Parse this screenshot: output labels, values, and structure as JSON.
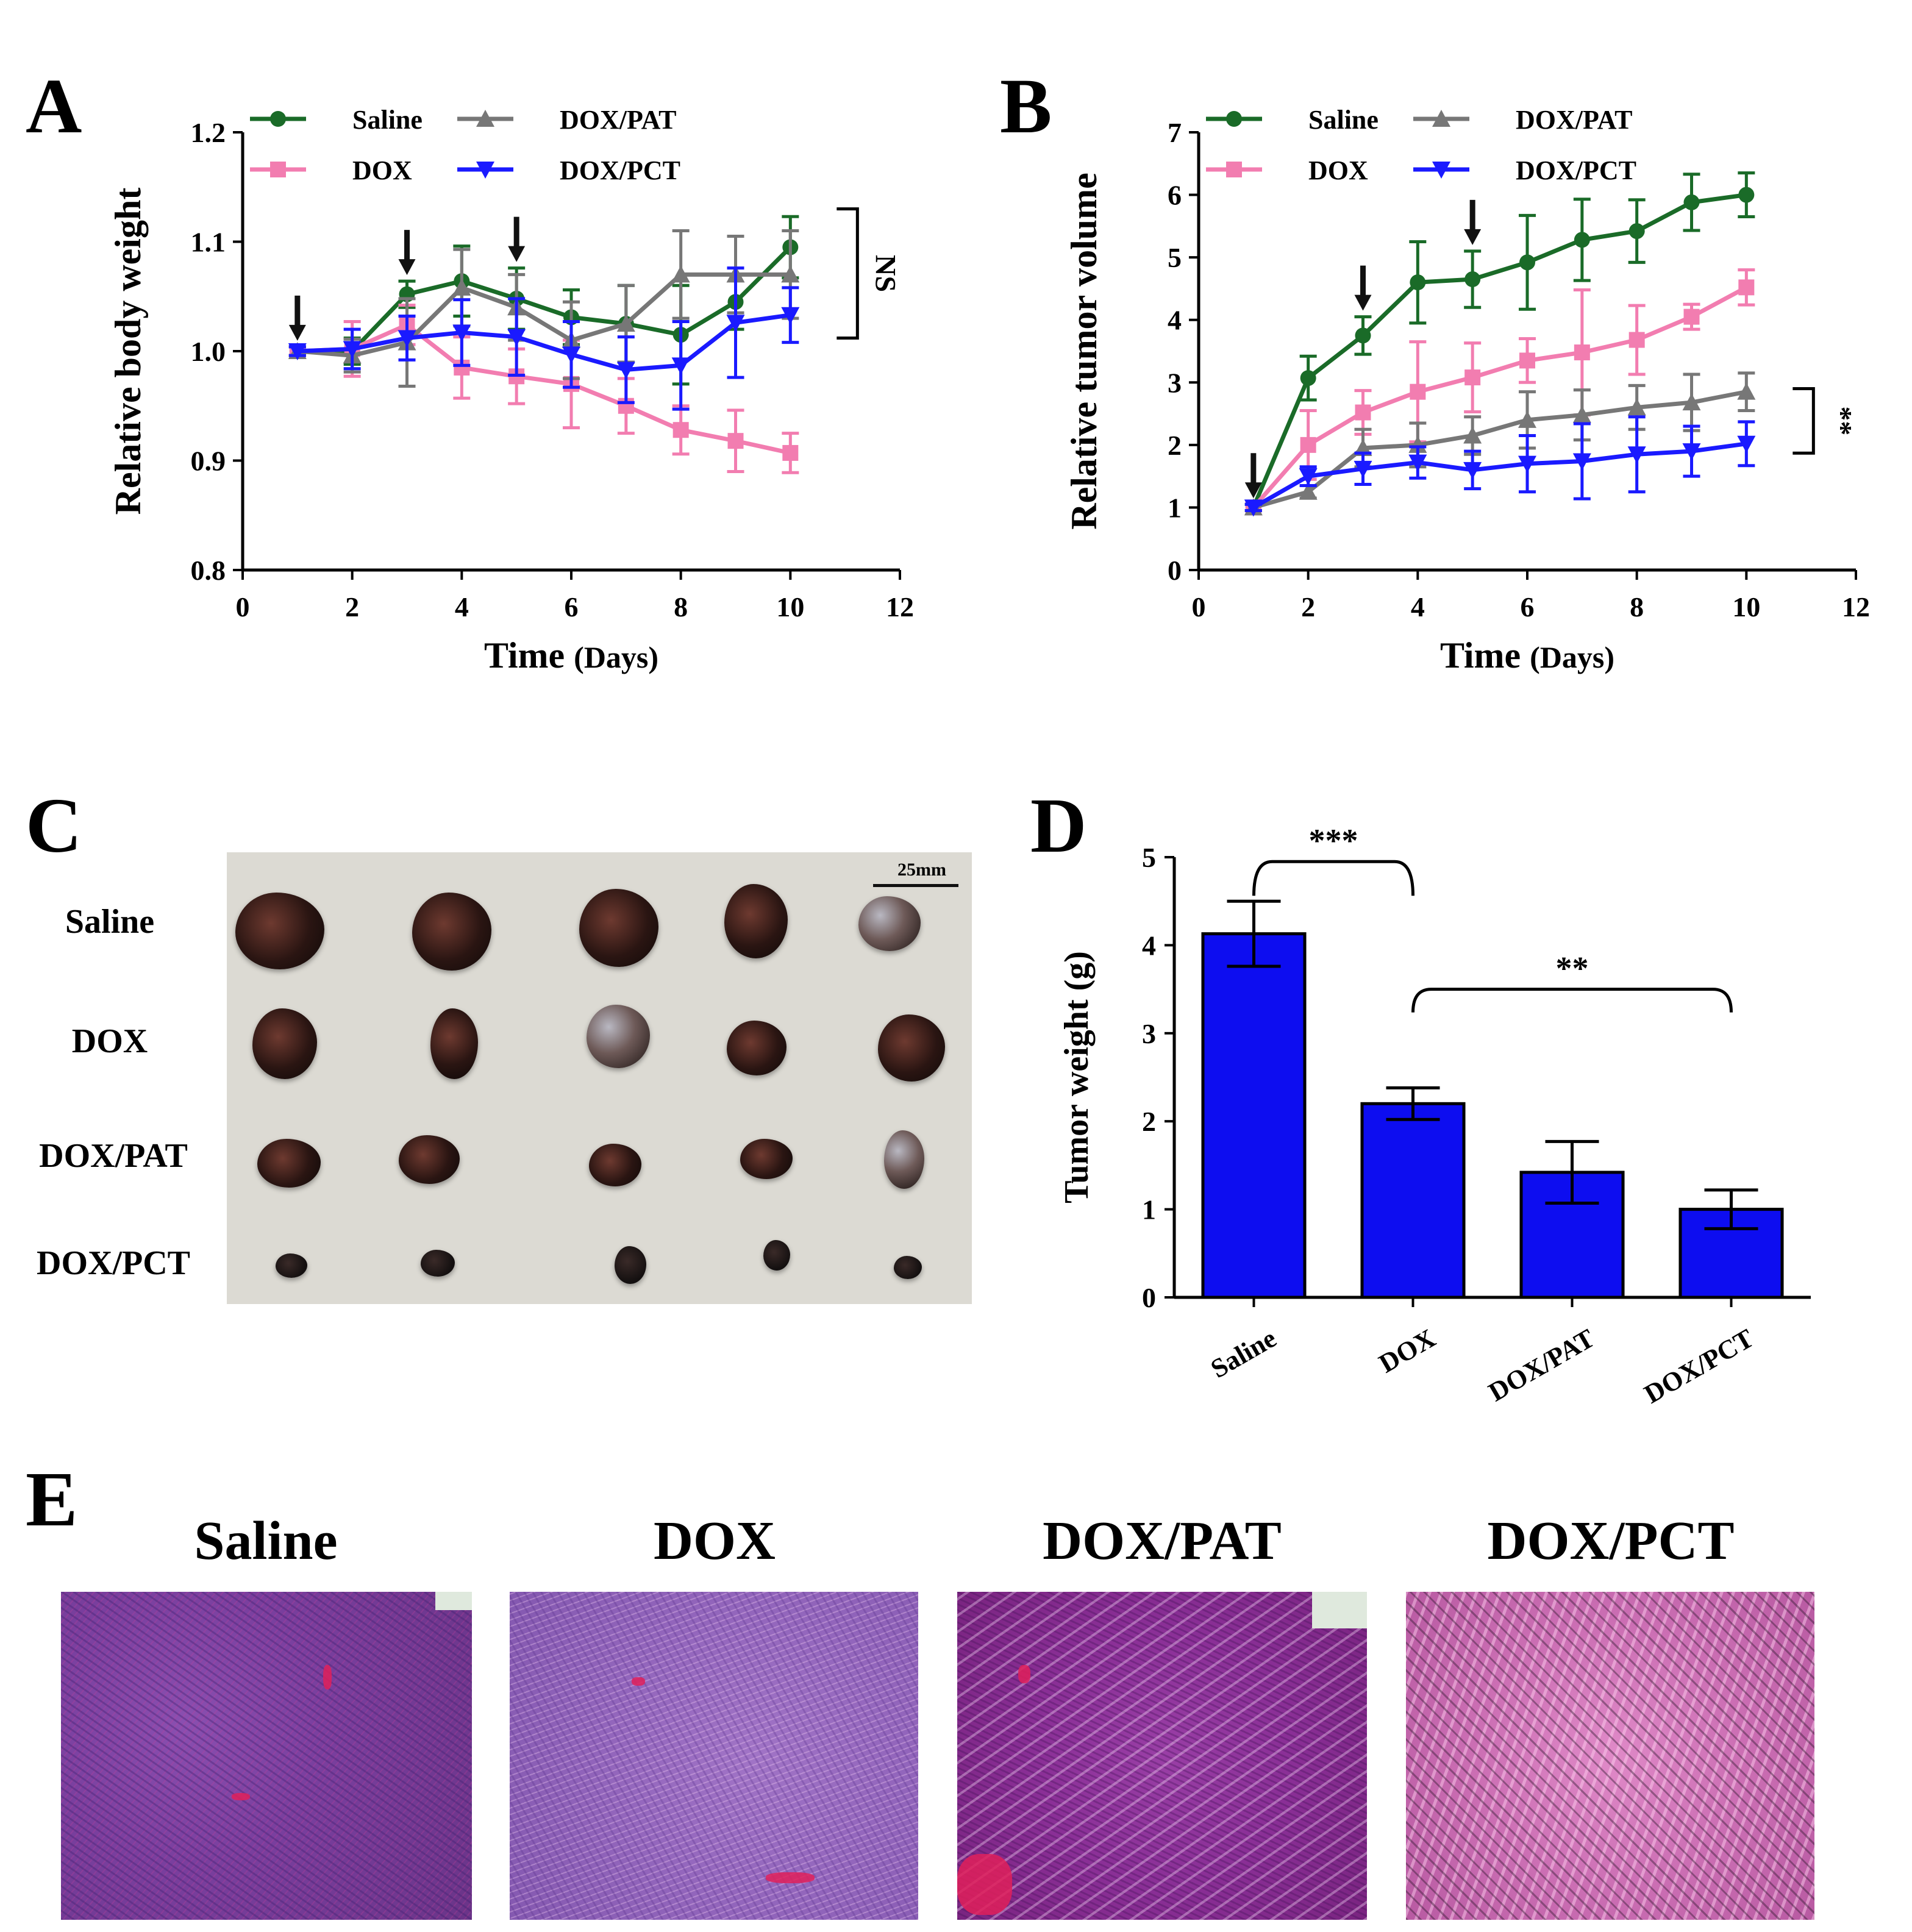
{
  "panels": {
    "a": "A",
    "b": "B",
    "c": "C",
    "d": "D",
    "e": "E"
  },
  "chart_data": [
    {
      "id": "A",
      "type": "line",
      "xlabel_main": "Time",
      "xlabel_unit": "(Days)",
      "ylabel": "Relative body weight",
      "xlim": [
        0,
        12
      ],
      "ylim": [
        0.8,
        1.2
      ],
      "xticks": [
        "0",
        "2",
        "4",
        "6",
        "8",
        "10",
        "12"
      ],
      "yticks": [
        "0.8",
        "0.9",
        "1.0",
        "1.1",
        "1.2"
      ],
      "x": [
        1,
        2,
        3,
        4,
        5,
        6,
        7,
        8,
        9,
        10
      ],
      "series": [
        {
          "name": "Saline",
          "color": "#1a6b28",
          "marker": "circle",
          "values": [
            1.0,
            1.0,
            1.052,
            1.064,
            1.048,
            1.031,
            1.025,
            1.015,
            1.045,
            1.095
          ],
          "errors": [
            0.004,
            0.012,
            0.012,
            0.032,
            0.028,
            0.025,
            0.035,
            0.045,
            0.025,
            0.028
          ]
        },
        {
          "name": "DOX",
          "color": "#f27db0",
          "marker": "square",
          "values": [
            1.0,
            1.002,
            1.024,
            0.985,
            0.977,
            0.97,
            0.95,
            0.928,
            0.918,
            0.907
          ],
          "errors": [
            0.004,
            0.025,
            0.018,
            0.028,
            0.025,
            0.04,
            0.025,
            0.022,
            0.028,
            0.018
          ]
        },
        {
          "name": "DOX/PAT",
          "color": "#777777",
          "marker": "triangle-up",
          "values": [
            1.0,
            0.996,
            1.008,
            1.058,
            1.04,
            1.01,
            1.025,
            1.07,
            1.07,
            1.07
          ],
          "errors": [
            0.004,
            0.015,
            0.04,
            0.035,
            0.03,
            0.035,
            0.035,
            0.04,
            0.035,
            0.04
          ]
        },
        {
          "name": "DOX/PCT",
          "color": "#1a1aff",
          "marker": "triangle-down",
          "values": [
            1.0,
            1.002,
            1.012,
            1.017,
            1.013,
            0.997,
            0.983,
            0.987,
            1.026,
            1.033
          ],
          "errors": [
            0.004,
            0.018,
            0.02,
            0.03,
            0.035,
            0.03,
            0.03,
            0.04,
            0.05,
            0.025
          ]
        }
      ],
      "dose_arrows_x": [
        1,
        3,
        5
      ],
      "significance": "NS"
    },
    {
      "id": "B",
      "type": "line",
      "xlabel_main": "Time",
      "xlabel_unit": "(Days)",
      "ylabel": "Relative tumor volume",
      "xlim": [
        0,
        12
      ],
      "ylim": [
        0,
        7
      ],
      "xticks": [
        "0",
        "2",
        "4",
        "6",
        "8",
        "10",
        "12"
      ],
      "yticks": [
        "0",
        "1",
        "2",
        "3",
        "4",
        "5",
        "6",
        "7"
      ],
      "x": [
        1,
        2,
        3,
        4,
        5,
        6,
        7,
        8,
        9,
        10
      ],
      "series": [
        {
          "name": "Saline",
          "color": "#1a6b28",
          "marker": "circle",
          "values": [
            1.0,
            3.07,
            3.75,
            4.6,
            4.65,
            4.92,
            5.28,
            5.42,
            5.88,
            6.0
          ],
          "errors": [
            0.05,
            0.35,
            0.3,
            0.65,
            0.45,
            0.75,
            0.65,
            0.5,
            0.45,
            0.35
          ]
        },
        {
          "name": "DOX",
          "color": "#f27db0",
          "marker": "square",
          "values": [
            1.0,
            2.0,
            2.52,
            2.85,
            3.08,
            3.35,
            3.48,
            3.68,
            4.05,
            4.52
          ],
          "errors": [
            0.05,
            0.55,
            0.35,
            0.8,
            0.55,
            0.35,
            1.0,
            0.55,
            0.2,
            0.28
          ]
        },
        {
          "name": "DOX/PAT",
          "color": "#777777",
          "marker": "triangle-up",
          "values": [
            1.0,
            1.25,
            1.95,
            2.0,
            2.15,
            2.4,
            2.48,
            2.6,
            2.68,
            2.85
          ],
          "errors": [
            0.05,
            0.1,
            0.3,
            0.35,
            0.3,
            0.45,
            0.4,
            0.35,
            0.45,
            0.3
          ]
        },
        {
          "name": "DOX/PCT",
          "color": "#1a1aff",
          "marker": "triangle-down",
          "values": [
            1.0,
            1.5,
            1.62,
            1.72,
            1.6,
            1.7,
            1.74,
            1.85,
            1.9,
            2.02
          ],
          "errors": [
            0.05,
            0.15,
            0.25,
            0.25,
            0.3,
            0.45,
            0.6,
            0.6,
            0.4,
            0.35
          ]
        }
      ],
      "dose_arrows_x": [
        1,
        3,
        5
      ],
      "significance": "**"
    },
    {
      "id": "D",
      "type": "bar",
      "ylabel": "Tumor weight (g)",
      "ylim": [
        0,
        5
      ],
      "yticks": [
        "0",
        "1",
        "2",
        "3",
        "4",
        "5"
      ],
      "categories": [
        "Saline",
        "DOX",
        "DOX/PAT",
        "DOX/PCT"
      ],
      "values": [
        4.13,
        2.2,
        1.42,
        1.0
      ],
      "errors": [
        0.37,
        0.18,
        0.35,
        0.22
      ],
      "color": "#0d0df0",
      "comparisons": [
        {
          "from": 0,
          "to": 1,
          "label": "***"
        },
        {
          "from": 1,
          "to": 3,
          "label": "**"
        }
      ]
    }
  ],
  "photo": {
    "rows": [
      "Saline",
      "DOX",
      "DOX/PAT",
      "DOX/PCT"
    ],
    "scale_bar": "25mm"
  },
  "histology": {
    "titles": [
      "Saline",
      "DOX",
      "DOX/PAT",
      "DOX/PCT"
    ]
  }
}
